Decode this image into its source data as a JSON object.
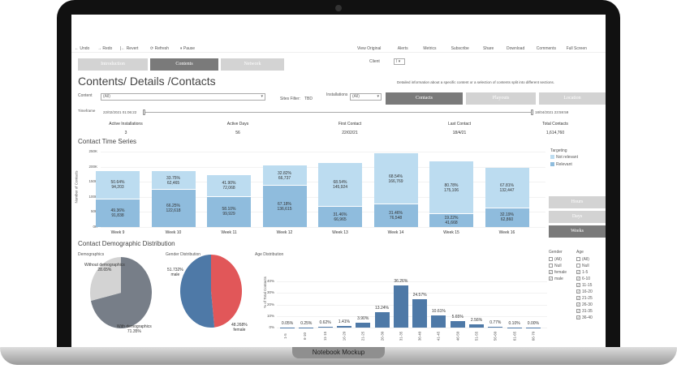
{
  "toolbar": {
    "left": [
      "← Undo",
      "→ Redo",
      "|← Revert",
      "⟳ Refresh",
      "⏸ Pause"
    ],
    "right": [
      "View Original",
      "Alerts",
      "Metrics",
      "Subscribe",
      "Share",
      "Download",
      "Comments",
      "Full Screen"
    ]
  },
  "nav_tabs": [
    "Introduction",
    "Contents",
    "Network"
  ],
  "client": {
    "label": "Client",
    "value": "I"
  },
  "title": "Contents/ Details /Contacts",
  "description": "Detailed information about a specific content or a selection of contents split into different sections.",
  "filters": {
    "content_label": "Content",
    "content_value": "(All)",
    "sites_label": "Sites Filter:",
    "sites_value": "TBD",
    "installations_label": "Installations",
    "installations_value": "(All)"
  },
  "view_buttons": [
    "Contacts",
    "Playouts",
    "Location"
  ],
  "timeframe": {
    "label": "Timeframe",
    "start": "22/02/2021 01:06:22",
    "end": "18/04/2021 23:59:59"
  },
  "kpis": [
    {
      "label": "Active Installations",
      "value": "3"
    },
    {
      "label": "Active Days",
      "value": "56"
    },
    {
      "label": "First Contact",
      "value": "22/02/21"
    },
    {
      "label": "Last Contact",
      "value": "18/4/21"
    },
    {
      "label": "Total Contacts",
      "value": "1,614,760"
    }
  ],
  "granularity_buttons": [
    "Hours",
    "Days",
    "Weeks"
  ],
  "colors": {
    "not_relevant": "#bcdcf0",
    "relevant": "#8fbcdd",
    "blue": "#4e79a7",
    "red": "#e15759",
    "grey": "#777e88",
    "lightgrey": "#d3d3d3"
  },
  "chart_data": [
    {
      "type": "bar",
      "title": "Contact Time Series",
      "ylabel": "Number of Contacts",
      "ylim": [
        0,
        250000
      ],
      "yticks": [
        "0K",
        "50K",
        "100K",
        "150K",
        "200K",
        "250K"
      ],
      "categories": [
        "Week 9",
        "Week 10",
        "Week 11",
        "Week 12",
        "Week 13",
        "Week 14",
        "Week 15",
        "Week 16"
      ],
      "legend_title": "Targeting",
      "series": [
        {
          "name": "Relevant",
          "values": [
            91838,
            122618,
            99929,
            136615,
            66965,
            76548,
            41668,
            62860
          ],
          "pct": [
            "49.36%",
            "66.25%",
            "58.10%",
            "67.18%",
            "31.46%",
            "31.46%",
            "19.22%",
            "32.19%"
          ]
        },
        {
          "name": "Not relevant",
          "values": [
            94203,
            62465,
            72068,
            66737,
            145924,
            166769,
            175106,
            132447
          ],
          "pct": [
            "50.64%",
            "33.75%",
            "41.90%",
            "32.82%",
            "68.54%",
            "68.54%",
            "80.78%",
            "67.81%"
          ]
        }
      ]
    },
    {
      "type": "pie",
      "title": "Demographics",
      "labels": [
        "Without demographics",
        "With demographics"
      ],
      "values": [
        28.65,
        71.35
      ],
      "pct": [
        "28.65%",
        "71.35%"
      ]
    },
    {
      "type": "pie",
      "title": "Gender Distribution",
      "labels": [
        "male",
        "female"
      ],
      "values": [
        51.732,
        48.268
      ],
      "pct": [
        "51.732%",
        "48.268%"
      ]
    },
    {
      "type": "bar",
      "title": "Age Distribution",
      "ylabel": "% of Total Contacts",
      "ylim": [
        0,
        40
      ],
      "yticks": [
        "0%",
        "10%",
        "20%",
        "30%",
        "40%"
      ],
      "categories": [
        "1-5",
        "6-10",
        "11-15",
        "16-20",
        "21-25",
        "26-30",
        "31-35",
        "36-40",
        "41-45",
        "46-50",
        "51-55",
        "56-60",
        "61-65",
        "66-70"
      ],
      "values": [
        0.05,
        0.25,
        0.62,
        1.41,
        3.9,
        13.24,
        36.26,
        24.57,
        10.61,
        5.65,
        2.56,
        0.77,
        0.1,
        0.0
      ],
      "labels": [
        "0.05%",
        "0.25%",
        "0.62%",
        "1.41%",
        "3.90%",
        "13.24%",
        "36.26%",
        "24.57%",
        "10.61%",
        "5.65%",
        "2.56%",
        "0.77%",
        "0.10%",
        "0.00%"
      ]
    }
  ],
  "section2_title": "Contact Demographic Distribution",
  "gender_filter": {
    "title": "Gender",
    "items": [
      {
        "label": "(All)",
        "checked": false
      },
      {
        "label": "Null",
        "checked": false
      },
      {
        "label": "female",
        "checked": true
      },
      {
        "label": "male",
        "checked": true
      }
    ]
  },
  "age_filter": {
    "title": "Age",
    "items": [
      {
        "label": "(All)",
        "checked": false
      },
      {
        "label": "Null",
        "checked": false
      },
      {
        "label": "1-5",
        "checked": true
      },
      {
        "label": "6-10",
        "checked": true
      },
      {
        "label": "11-15",
        "checked": true
      },
      {
        "label": "16-20",
        "checked": true
      },
      {
        "label": "21-25",
        "checked": true
      },
      {
        "label": "26-30",
        "checked": true
      },
      {
        "label": "31-35",
        "checked": true
      },
      {
        "label": "36-40",
        "checked": true
      }
    ]
  },
  "mockup_label": "Notebook Mockup"
}
